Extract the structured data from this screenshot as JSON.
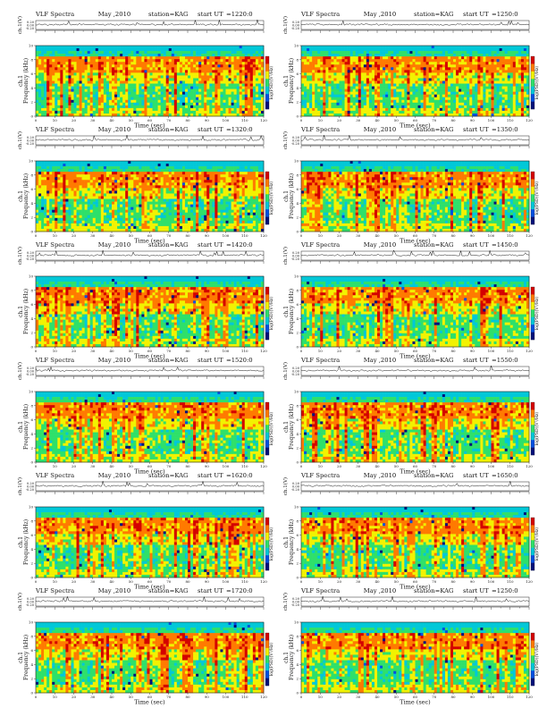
{
  "chart_data": {
    "type": "heatmap",
    "common": {
      "title": "VLF Spectra",
      "date": "May ,2010",
      "station": "station=KAG",
      "start_label": "start UT",
      "top_ylabel": "ch.1(V)",
      "top_yticks": [
        "0.20",
        "0.00",
        "-0.20"
      ],
      "spec_ylabel_a": "ch.1",
      "spec_ylabel_b": "Frequency (kHz)",
      "spec_yticks": [
        "10",
        "8",
        "6",
        "4",
        "2",
        "0"
      ],
      "xlabel": "Time (sec)",
      "xticks": [
        "0",
        "10",
        "20",
        "30",
        "40",
        "50",
        "60",
        "70",
        "80",
        "90",
        "100",
        "110",
        "120"
      ],
      "xlim": [
        0,
        120
      ],
      "ylim_khz": [
        0,
        10
      ],
      "colorbar_label": "log(PSD)(V²/Hz)",
      "colorbar_colors": [
        "#d40000",
        "#ff7a00",
        "#f2f200",
        "#2ee06a",
        "#00c8d8",
        "#0050e0",
        "#00107a"
      ]
    },
    "panels": [
      {
        "start_ut": "=1220:0"
      },
      {
        "start_ut": "=1250:0"
      },
      {
        "start_ut": "=1320:0"
      },
      {
        "start_ut": "=1350:0"
      },
      {
        "start_ut": "=1420:0"
      },
      {
        "start_ut": "=1450:0"
      },
      {
        "start_ut": "=1520:0"
      },
      {
        "start_ut": "=1550:0"
      },
      {
        "start_ut": "=1620:0"
      },
      {
        "start_ut": "=1650:0"
      },
      {
        "start_ut": "=1720:0"
      },
      {
        "start_ut": "=1250:0"
      }
    ]
  }
}
